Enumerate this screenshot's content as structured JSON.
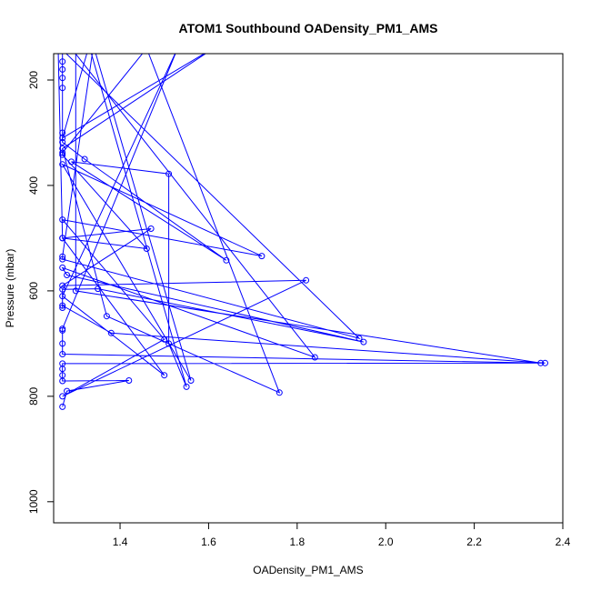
{
  "chart_data": {
    "type": "line",
    "title": "ATOM1 Southbound OADensity_PM1_AMS",
    "xlabel": "OADensity_PM1_AMS",
    "ylabel": "Pressure (mbar)",
    "xlim": [
      1.25,
      2.4
    ],
    "ylim": [
      1040,
      150
    ],
    "y_reversed": true,
    "grid": false,
    "legend": "none",
    "x_ticks": [
      1.4,
      1.6,
      1.8,
      2.0,
      2.2,
      2.4
    ],
    "x_tick_labels": [
      "1.4",
      "1.6",
      "1.8",
      "2.0",
      "2.2",
      "2.4"
    ],
    "y_ticks": [
      200,
      400,
      600,
      800,
      1000
    ],
    "y_tick_labels": [
      "200",
      "400",
      "600",
      "800",
      "1000"
    ],
    "series": [
      {
        "color": "#0000ff",
        "points": [
          [
            1.27,
            820
          ],
          [
            1.28,
            790
          ],
          [
            1.42,
            770
          ],
          [
            1.27,
            771
          ],
          [
            1.27,
            760
          ],
          [
            1.27,
            748
          ],
          [
            1.27,
            738
          ],
          [
            2.36,
            737
          ],
          [
            1.38,
            680
          ],
          [
            1.27,
            628
          ],
          [
            1.27,
            632
          ],
          [
            1.27,
            597
          ],
          [
            1.35,
            596
          ],
          [
            1.95,
            697
          ],
          [
            1.28,
            570
          ],
          [
            1.27,
            556
          ],
          [
            1.84,
            726
          ],
          [
            1.29,
            140
          ],
          [
            1.27,
            140
          ],
          [
            1.27,
            165
          ],
          [
            1.27,
            180
          ],
          [
            1.27,
            196
          ],
          [
            1.27,
            215
          ],
          [
            1.27,
            300
          ],
          [
            1.27,
            318
          ],
          [
            1.32,
            350
          ],
          [
            1.64,
            542
          ],
          [
            1.29,
            355
          ],
          [
            1.51,
            378
          ],
          [
            1.51,
            700
          ],
          [
            1.55,
            782
          ],
          [
            1.33,
            135
          ],
          [
            1.27,
            310
          ],
          [
            1.62,
            135
          ],
          [
            1.27,
            330
          ],
          [
            1.37,
            648
          ],
          [
            1.76,
            793
          ],
          [
            1.46,
            140
          ],
          [
            1.27,
            338
          ],
          [
            1.27,
            342
          ],
          [
            1.46,
            520
          ],
          [
            1.27,
            500
          ],
          [
            1.47,
            482
          ],
          [
            1.27,
            590
          ],
          [
            1.82,
            580
          ],
          [
            1.27,
            800
          ],
          [
            1.5,
            692
          ],
          [
            1.27,
            465
          ],
          [
            1.72,
            534
          ],
          [
            1.27,
            360
          ],
          [
            1.56,
            770
          ],
          [
            1.34,
            135
          ],
          [
            1.27,
            535
          ],
          [
            1.27,
            540
          ],
          [
            1.94,
            690
          ],
          [
            1.26,
            135
          ],
          [
            1.27,
            500
          ],
          [
            1.5,
            760
          ],
          [
            1.27,
            610
          ],
          [
            1.53,
            140
          ],
          [
            1.27,
            672
          ],
          [
            1.27,
            675
          ],
          [
            1.27,
            700
          ],
          [
            1.27,
            720
          ],
          [
            2.35,
            737
          ],
          [
            1.3,
            600
          ],
          [
            1.3,
            140
          ]
        ]
      }
    ]
  }
}
